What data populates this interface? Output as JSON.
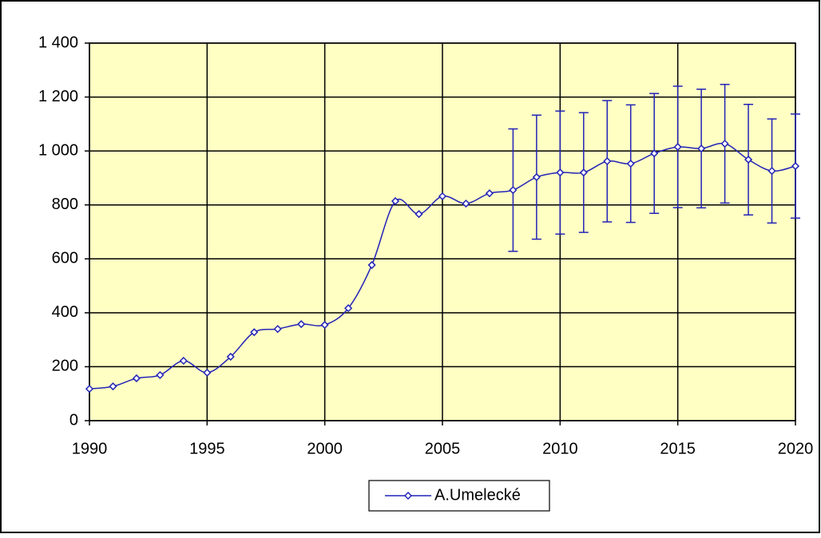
{
  "chart_data": {
    "type": "line",
    "x": [
      1990,
      1991,
      1992,
      1993,
      1994,
      1995,
      1996,
      1997,
      1998,
      1999,
      2000,
      2001,
      2002,
      2003,
      2004,
      2005,
      2006,
      2007,
      2008,
      2009,
      2010,
      2011,
      2012,
      2013,
      2014,
      2015,
      2016,
      2017,
      2018,
      2019,
      2020
    ],
    "series": [
      {
        "name": "A.Umelecké",
        "color": "#2323b8",
        "values": [
          118,
          127,
          157,
          169,
          222,
          178,
          237,
          328,
          340,
          358,
          355,
          417,
          577,
          814,
          766,
          832,
          805,
          843,
          855,
          903,
          920,
          920,
          962,
          953,
          991,
          1015,
          1009,
          1027,
          968,
          926,
          944
        ],
        "errors": [
          null,
          null,
          null,
          null,
          null,
          null,
          null,
          null,
          null,
          null,
          null,
          null,
          null,
          null,
          null,
          null,
          null,
          null,
          227,
          230,
          228,
          222,
          225,
          218,
          222,
          225,
          220,
          220,
          205,
          193,
          193
        ]
      }
    ],
    "xlim": [
      1990,
      2020
    ],
    "xticks": [
      1990,
      1995,
      2000,
      2005,
      2010,
      2015,
      2020
    ],
    "ylim": [
      0,
      1400
    ],
    "yticks": [
      0,
      200,
      400,
      600,
      800,
      {
        "value": 1000,
        "label": "1 000"
      },
      {
        "value": 1200,
        "label": "1 200"
      },
      {
        "value": 1400,
        "label": "1 400"
      }
    ],
    "grid": true,
    "legend": "bottom"
  }
}
